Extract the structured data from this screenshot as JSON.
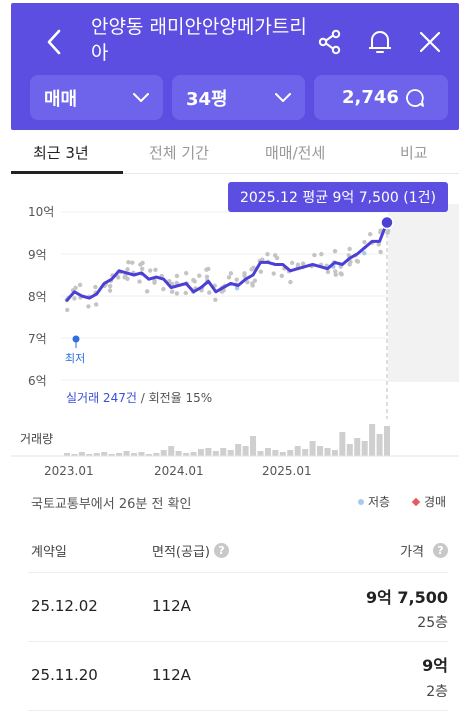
{
  "header": {
    "title": "안양동 래미안안양메가트리아",
    "icons": [
      "back-icon",
      "share-icon",
      "bell-icon",
      "close-icon"
    ],
    "deal_type": "매매",
    "size": "34평",
    "talk_count": "2,746"
  },
  "tabs": [
    "최근 3년",
    "전체 기간",
    "매매/전세",
    "비교"
  ],
  "chart": {
    "tooltip": "2025.12 평균 9억 7,500 (1건)",
    "y_ticks": [
      "10억",
      "9억",
      "8억",
      "7억",
      "6억"
    ],
    "lowest_label": "최저",
    "stat_highlight": "실거래 247건",
    "stat_rest": " / 회전율 15%",
    "volume_label": "거래량",
    "x_ticks": [
      "2023.01",
      "2024.01",
      "2025.01"
    ]
  },
  "chart_data": {
    "type": "line",
    "x_unit": "month",
    "y_unit": "억",
    "ylim": [
      6,
      10
    ],
    "series": [
      {
        "values": [
          7.9,
          8.1,
          8.0,
          7.95,
          8.05,
          8.3,
          8.4,
          8.6,
          8.55,
          8.5,
          8.55,
          8.4,
          8.45,
          8.4,
          8.2,
          8.25,
          8.3,
          8.1,
          8.2,
          8.35,
          8.1,
          8.2,
          8.3,
          8.25,
          8.4,
          8.5,
          8.8,
          8.8,
          8.75,
          8.75,
          8.6,
          8.65,
          8.7,
          8.75,
          8.7,
          8.65,
          8.8,
          8.75,
          8.9,
          9.0,
          9.15,
          9.3,
          9.3,
          9.75
        ]
      }
    ],
    "lowest_value": 7.0,
    "latest": {
      "date": "2025.12",
      "avg": 9.75,
      "count": 1
    }
  },
  "source": "국토교통부에서 26분 전 확인",
  "legend": [
    {
      "label": "저층",
      "color": "#a8c8f0"
    },
    {
      "label": "경매",
      "color": "#e55a5a"
    }
  ],
  "table": {
    "headers": {
      "date": "계약일",
      "area": "면적(공급)",
      "price": "가격"
    },
    "rows": [
      {
        "date": "25.12.02",
        "area": "112A",
        "price": "9억 7,500",
        "floor": "25층"
      },
      {
        "date": "25.11.20",
        "area": "112A",
        "price": "9억",
        "floor": "2층"
      }
    ]
  }
}
